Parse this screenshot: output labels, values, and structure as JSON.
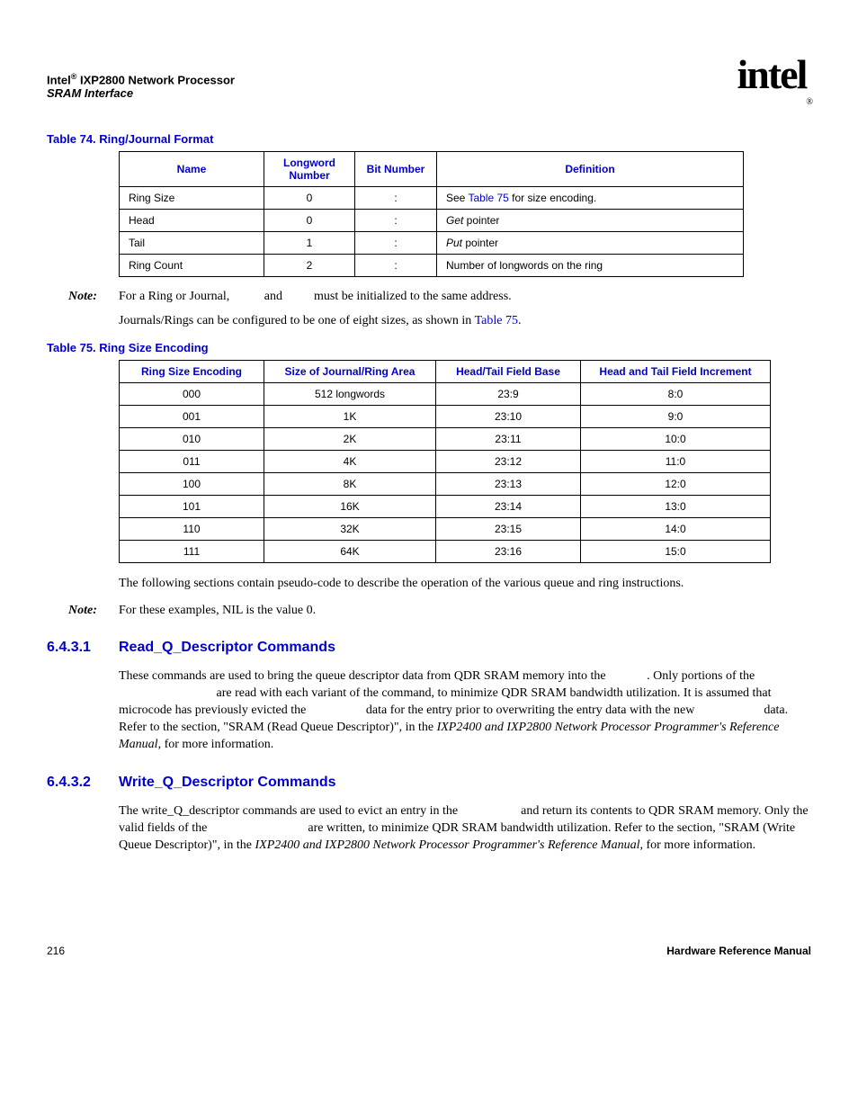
{
  "header": {
    "line1_prefix": "Intel",
    "line1_suffix": " IXP2800 Network Processor",
    "line2": "SRAM Interface",
    "logo": "intel",
    "reg": "®"
  },
  "table74": {
    "caption": "Table 74.  Ring/Journal Format",
    "headers": [
      "Name",
      "Longword Number",
      "Bit Number",
      "Definition"
    ],
    "rows": [
      {
        "name": "Ring Size",
        "lw": "0",
        "bit": ":",
        "def_prefix": "See ",
        "def_link": "Table 75",
        "def_suffix": " for size encoding."
      },
      {
        "name": "Head",
        "lw": "0",
        "bit": ":",
        "def_ital": "Get",
        "def_rest": " pointer"
      },
      {
        "name": "Tail",
        "lw": "1",
        "bit": ":",
        "def_ital": "Put",
        "def_rest": " pointer"
      },
      {
        "name": "Ring Count",
        "lw": "2",
        "bit": ":",
        "def_plain": "Number of longwords on the ring"
      }
    ],
    "col_widths": [
      "140px",
      "80px",
      "70px",
      "320px"
    ]
  },
  "note1": {
    "label": "Note:",
    "text1": "For a Ring or Journal, ",
    "gap1": "         ",
    "text2": " and ",
    "gap2": "        ",
    "text3": " must be initialized to the same address."
  },
  "para1": {
    "text": "Journals/Rings can be configured to be one of eight sizes, as shown in ",
    "link": "Table 75",
    "suffix": "."
  },
  "table75": {
    "caption": "Table 75.  Ring Size Encoding",
    "headers": [
      "Ring Size Encoding",
      "Size of Journal/Ring Area",
      "Head/Tail Field Base",
      "Head and Tail Field Increment"
    ],
    "rows": [
      [
        "000",
        "512 longwords",
        "23:9",
        "8:0"
      ],
      [
        "001",
        "1K",
        "23:10",
        "9:0"
      ],
      [
        "010",
        "2K",
        "23:11",
        "10:0"
      ],
      [
        "011",
        "4K",
        "23:12",
        "11:0"
      ],
      [
        "100",
        "8K",
        "23:13",
        "12:0"
      ],
      [
        "101",
        "16K",
        "23:14",
        "13:0"
      ],
      [
        "110",
        "32K",
        "23:15",
        "14:0"
      ],
      [
        "111",
        "64K",
        "23:16",
        "15:0"
      ]
    ],
    "col_widths": [
      "140px",
      "170px",
      "140px",
      "190px"
    ]
  },
  "para2": "The following sections contain pseudo-code to describe the operation of the various queue and ring instructions.",
  "note2": {
    "label": "Note:",
    "text": "For these examples, NIL is the value 0."
  },
  "sec1": {
    "num": "6.4.3.1",
    "title": "Read_Q_Descriptor Commands",
    "p1_a": "These commands are used to bring the queue descriptor data from QDR SRAM memory into the ",
    "p1_b": ". Only portions of the ",
    "p1_c": " are read with each variant of the command, to minimize QDR SRAM bandwidth utilization. It is assumed that microcode has previously evicted the ",
    "p1_d": " data for the entry prior to overwriting the entry data with the new ",
    "p1_e": " data. Refer to the section, \"SRAM (Read Queue Descriptor)\", in the ",
    "p1_manual": "IXP2400 and IXP2800 Network Processor Programmer's Reference Manual",
    "p1_f": ", for more information."
  },
  "sec2": {
    "num": "6.4.3.2",
    "title": "Write_Q_Descriptor Commands",
    "p1_a": "The write_Q_descriptor commands are used to evict an entry in the ",
    "p1_b": " and return its contents to QDR SRAM memory. Only the valid fields of the ",
    "p1_c": " are written, to minimize QDR SRAM bandwidth utilization. Refer to the section, \"SRAM (Write Queue Descriptor)\", in the ",
    "p1_manual": "IXP2400 and IXP2800 Network Processor Programmer's Reference Manual",
    "p1_d": ", for more information."
  },
  "footer": {
    "page": "216",
    "right": "Hardware Reference Manual"
  },
  "colors": {
    "link": "#0000cc",
    "text": "#000000",
    "background": "#ffffff"
  }
}
